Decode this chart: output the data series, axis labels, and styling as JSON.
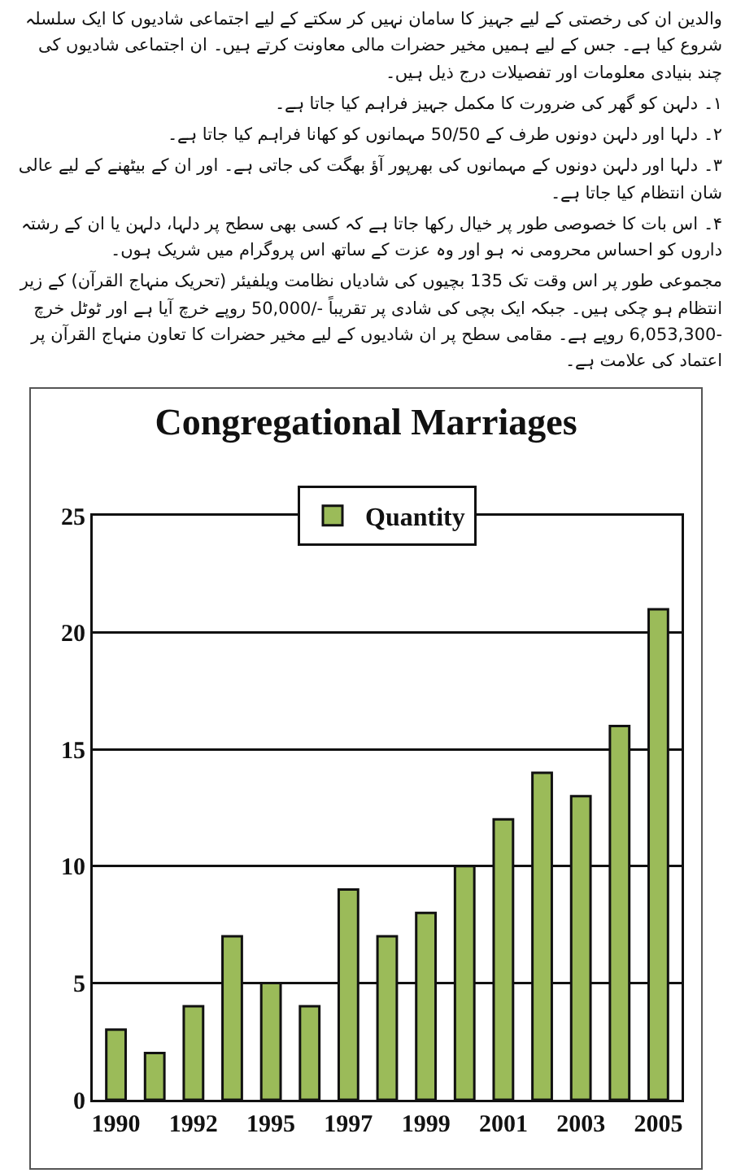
{
  "chart_data": {
    "type": "bar",
    "title": "Congregational Marriages",
    "annotations": [
      "والدین ان کی رخصتی کے لیے جہیز کا سامان نہیں کر سکتے کے لیے اجتماعی شادیوں کا ایک سلسلہ شروع کیا ہے۔ جس کے لیے ہمیں مخیر حضرات مالی معاونت کرتے ہیں۔ ان اجتماعی شادیوں کی چند بنیادی معلومات اور تفصیلات درج ذیل ہیں۔",
      "۱۔ دلہن کو گھر کی ضرورت کا مکمل جہیز فراہم کیا جاتا ہے۔",
      "۲۔ دلہا اور دلہن دونوں طرف کے 50/50 مہمانوں کو کھانا فراہم کیا جاتا ہے۔",
      "۳۔ دلہا اور دلہن دونوں کے مہمانوں کی بھرپور آؤ بھگت کی جاتی ہے۔ اور ان کے بیٹھنے کے لیے عالی شان انتظام کیا جاتا ہے۔",
      "۴۔ اس بات کا خصوصی طور پر خیال رکھا جاتا ہے کہ کسی بھی سطح پر دلہا، دلہن یا ان کے رشتہ داروں کو احساس محرومی نہ ہو اور وہ عزت کے ساتھ اس پروگرام میں شریک ہوں۔",
      "مجموعی طور پر اس وقت تک 135 بچیوں کی شادیاں نظامت ویلفیئر (تحریک منہاج القرآن) کے زیر انتظام ہو چکی ہیں۔ جبکہ ایک بچی کی شادی پر تقریباً -/50,000 روپے خرچ آیا ہے اور ٹوٹل خرچ -6,053,300 روپے ہے۔ مقامی سطح پر ان شادیوں کے لیے مخیر حضرات کا تعاون منہاج القرآن پر اعتماد کی علامت ہے۔"
    ],
    "categories": [
      "1990",
      null,
      "1992",
      null,
      "1995",
      null,
      "1997",
      null,
      "1999",
      null,
      "2001",
      null,
      "2003",
      null,
      "2005"
    ],
    "series": [
      {
        "name": "Quantity",
        "color": "#9bbb59",
        "values": [
          3,
          2,
          4,
          7,
          5,
          4,
          9,
          7,
          8,
          10,
          12,
          14,
          13,
          16,
          21
        ]
      }
    ],
    "ylim": [
      0,
      25
    ],
    "yticks": [
      0,
      5,
      10,
      15,
      20,
      25
    ],
    "grid": "y",
    "legend": "top"
  }
}
